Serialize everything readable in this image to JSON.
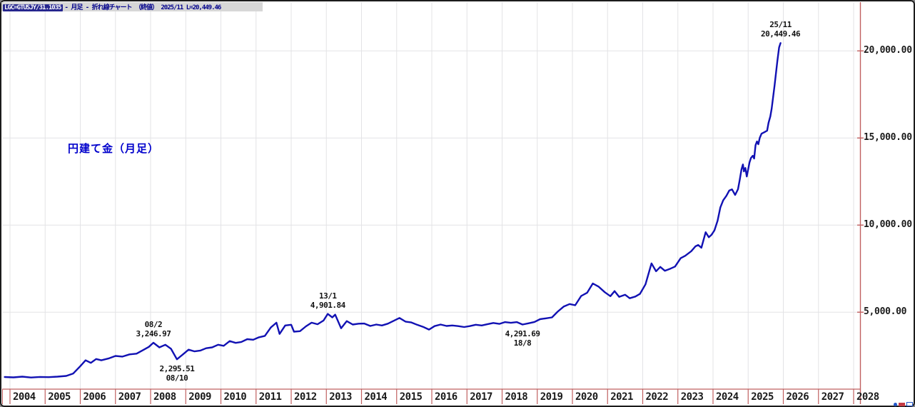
{
  "header": {
    "symbol": "LGC=GTUSJY/31.1035",
    "description": "- 月足 - 折れ線チャート （終値） 2025/11 L=20,449.46"
  },
  "chart_label": "円建て金（月足）",
  "chart_data": {
    "type": "line",
    "title": "円建て金（月足）",
    "subtitle": "LGC=GTUSJY/31.1035 月足 折れ線チャート（終値）",
    "last_period": "2025/11",
    "last_value": 20449.46,
    "xlabel": "",
    "ylabel": "",
    "x_ticks": [
      "2004",
      "2005",
      "2006",
      "2007",
      "2008",
      "2009",
      "2010",
      "2011",
      "2012",
      "2013",
      "2014",
      "2015",
      "2016",
      "2017",
      "2018",
      "2019",
      "2020",
      "2021",
      "2022",
      "2023",
      "2024",
      "2025",
      "2026",
      "2027",
      "2028"
    ],
    "y_ticks": [
      {
        "value": 5000,
        "label": "5,000.00"
      },
      {
        "value": 10000,
        "label": "10,000.00"
      },
      {
        "value": 15000,
        "label": "15,000.00"
      },
      {
        "value": 20000,
        "label": "20,000.00"
      }
    ],
    "xlim": [
      2003.8,
      2028.3
    ],
    "ylim": [
      0,
      22800
    ],
    "grid": true,
    "legend": "none",
    "line_color": "#1111b3",
    "axis_color": "#c06060",
    "grid_color": "#e3e3e6",
    "annotations": [
      {
        "date": "08/2",
        "value": "3,246.97",
        "placement": "above",
        "x": 2008.08,
        "y": 3247
      },
      {
        "date": "08/10",
        "value": "2,295.51",
        "placement": "below",
        "x": 2008.75,
        "y": 2295
      },
      {
        "date": "13/1",
        "value": "4,901.84",
        "placement": "above",
        "x": 2013.04,
        "y": 4902
      },
      {
        "date": "18/8",
        "value": "4,291.69",
        "placement": "below",
        "x": 2018.58,
        "y": 4292
      },
      {
        "date": "25/11",
        "value": "20,449.46",
        "placement": "above",
        "x": 2025.92,
        "y": 20449
      }
    ],
    "series": [
      {
        "name": "LGC=GTUSJY 終値",
        "points": [
          [
            2003.85,
            1280
          ],
          [
            2004.1,
            1260
          ],
          [
            2004.35,
            1300
          ],
          [
            2004.6,
            1250
          ],
          [
            2004.85,
            1285
          ],
          [
            2005.1,
            1270
          ],
          [
            2005.35,
            1300
          ],
          [
            2005.6,
            1340
          ],
          [
            2005.8,
            1480
          ],
          [
            2006.0,
            1900
          ],
          [
            2006.15,
            2240
          ],
          [
            2006.3,
            2090
          ],
          [
            2006.45,
            2310
          ],
          [
            2006.6,
            2240
          ],
          [
            2006.8,
            2340
          ],
          [
            2007.0,
            2490
          ],
          [
            2007.2,
            2450
          ],
          [
            2007.4,
            2580
          ],
          [
            2007.6,
            2620
          ],
          [
            2007.8,
            2840
          ],
          [
            2007.95,
            3010
          ],
          [
            2008.08,
            3247
          ],
          [
            2008.25,
            2980
          ],
          [
            2008.42,
            3130
          ],
          [
            2008.58,
            2900
          ],
          [
            2008.75,
            2295
          ],
          [
            2008.92,
            2580
          ],
          [
            2009.08,
            2850
          ],
          [
            2009.25,
            2750
          ],
          [
            2009.42,
            2800
          ],
          [
            2009.58,
            2930
          ],
          [
            2009.75,
            2980
          ],
          [
            2009.92,
            3130
          ],
          [
            2010.08,
            3070
          ],
          [
            2010.25,
            3340
          ],
          [
            2010.42,
            3240
          ],
          [
            2010.58,
            3290
          ],
          [
            2010.75,
            3450
          ],
          [
            2010.92,
            3420
          ],
          [
            2011.08,
            3560
          ],
          [
            2011.25,
            3640
          ],
          [
            2011.42,
            4120
          ],
          [
            2011.58,
            4400
          ],
          [
            2011.67,
            3750
          ],
          [
            2011.83,
            4240
          ],
          [
            2012.0,
            4280
          ],
          [
            2012.08,
            3880
          ],
          [
            2012.25,
            3910
          ],
          [
            2012.42,
            4190
          ],
          [
            2012.58,
            4400
          ],
          [
            2012.75,
            4310
          ],
          [
            2012.92,
            4520
          ],
          [
            2013.04,
            4902
          ],
          [
            2013.17,
            4700
          ],
          [
            2013.25,
            4860
          ],
          [
            2013.42,
            4080
          ],
          [
            2013.58,
            4490
          ],
          [
            2013.75,
            4290
          ],
          [
            2013.92,
            4340
          ],
          [
            2014.08,
            4350
          ],
          [
            2014.25,
            4210
          ],
          [
            2014.42,
            4290
          ],
          [
            2014.58,
            4240
          ],
          [
            2014.75,
            4340
          ],
          [
            2014.92,
            4510
          ],
          [
            2015.08,
            4670
          ],
          [
            2015.25,
            4460
          ],
          [
            2015.42,
            4410
          ],
          [
            2015.58,
            4280
          ],
          [
            2015.75,
            4160
          ],
          [
            2015.92,
            4000
          ],
          [
            2016.08,
            4200
          ],
          [
            2016.25,
            4290
          ],
          [
            2016.42,
            4210
          ],
          [
            2016.58,
            4240
          ],
          [
            2016.75,
            4200
          ],
          [
            2016.92,
            4150
          ],
          [
            2017.08,
            4200
          ],
          [
            2017.25,
            4280
          ],
          [
            2017.42,
            4240
          ],
          [
            2017.58,
            4310
          ],
          [
            2017.75,
            4380
          ],
          [
            2017.92,
            4330
          ],
          [
            2018.08,
            4430
          ],
          [
            2018.25,
            4390
          ],
          [
            2018.42,
            4430
          ],
          [
            2018.58,
            4292
          ],
          [
            2018.75,
            4360
          ],
          [
            2018.92,
            4440
          ],
          [
            2019.08,
            4600
          ],
          [
            2019.25,
            4650
          ],
          [
            2019.42,
            4700
          ],
          [
            2019.58,
            5030
          ],
          [
            2019.75,
            5320
          ],
          [
            2019.92,
            5470
          ],
          [
            2020.08,
            5400
          ],
          [
            2020.25,
            5930
          ],
          [
            2020.42,
            6120
          ],
          [
            2020.58,
            6650
          ],
          [
            2020.75,
            6460
          ],
          [
            2020.92,
            6150
          ],
          [
            2021.08,
            5920
          ],
          [
            2021.2,
            6210
          ],
          [
            2021.33,
            5880
          ],
          [
            2021.5,
            6000
          ],
          [
            2021.63,
            5800
          ],
          [
            2021.79,
            5900
          ],
          [
            2021.92,
            6050
          ],
          [
            2022.08,
            6600
          ],
          [
            2022.25,
            7800
          ],
          [
            2022.38,
            7350
          ],
          [
            2022.5,
            7600
          ],
          [
            2022.63,
            7380
          ],
          [
            2022.79,
            7500
          ],
          [
            2022.92,
            7620
          ],
          [
            2023.08,
            8100
          ],
          [
            2023.21,
            8240
          ],
          [
            2023.38,
            8500
          ],
          [
            2023.5,
            8780
          ],
          [
            2023.58,
            8860
          ],
          [
            2023.67,
            8700
          ],
          [
            2023.79,
            9590
          ],
          [
            2023.88,
            9300
          ],
          [
            2023.96,
            9450
          ],
          [
            2024.04,
            9700
          ],
          [
            2024.13,
            10250
          ],
          [
            2024.21,
            11020
          ],
          [
            2024.29,
            11430
          ],
          [
            2024.38,
            11680
          ],
          [
            2024.46,
            11980
          ],
          [
            2024.54,
            12050
          ],
          [
            2024.63,
            11730
          ],
          [
            2024.71,
            12060
          ],
          [
            2024.76,
            12590
          ],
          [
            2024.81,
            13200
          ],
          [
            2024.85,
            13480
          ],
          [
            2024.88,
            13080
          ],
          [
            2024.92,
            13280
          ],
          [
            2024.96,
            12790
          ],
          [
            2025.04,
            13610
          ],
          [
            2025.08,
            13860
          ],
          [
            2025.13,
            13980
          ],
          [
            2025.17,
            13820
          ],
          [
            2025.21,
            14590
          ],
          [
            2025.25,
            14800
          ],
          [
            2025.29,
            14640
          ],
          [
            2025.33,
            15010
          ],
          [
            2025.38,
            15250
          ],
          [
            2025.46,
            15330
          ],
          [
            2025.54,
            15420
          ],
          [
            2025.58,
            15870
          ],
          [
            2025.63,
            16240
          ],
          [
            2025.67,
            16690
          ],
          [
            2025.75,
            18000
          ],
          [
            2025.83,
            19400
          ],
          [
            2025.88,
            20200
          ],
          [
            2025.92,
            20449
          ]
        ]
      }
    ]
  }
}
